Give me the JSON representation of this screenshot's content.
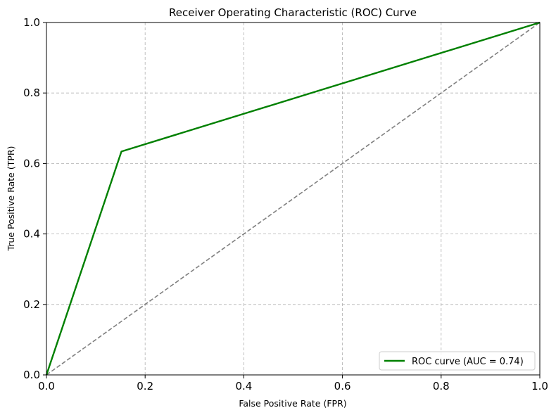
{
  "chart_data": {
    "type": "line",
    "title": "Receiver Operating Characteristic (ROC) Curve",
    "xlabel": "False Positive Rate (FPR)",
    "ylabel": "True Positive Rate (TPR)",
    "xlim": [
      0.0,
      1.0
    ],
    "ylim": [
      0.0,
      1.0
    ],
    "x_ticks": [
      "0.0",
      "0.2",
      "0.4",
      "0.6",
      "0.8",
      "1.0"
    ],
    "y_ticks": [
      "0.0",
      "0.2",
      "0.4",
      "0.6",
      "0.8",
      "1.0"
    ],
    "grid": true,
    "legend_position": "lower-right",
    "series": [
      {
        "name": "ROC curve (AUC = 0.74)",
        "color": "#008000",
        "line_style": "solid",
        "x": [
          0.0,
          0.152,
          1.0
        ],
        "y": [
          0.0,
          0.634,
          1.0
        ]
      },
      {
        "color": "#808080",
        "line_style": "dashed",
        "x": [
          0.0,
          1.0
        ],
        "y": [
          0.0,
          1.0
        ]
      }
    ]
  }
}
